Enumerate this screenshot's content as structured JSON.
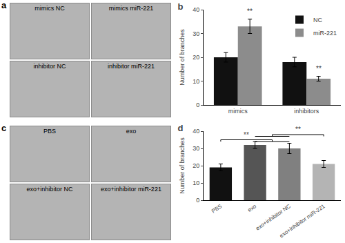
{
  "panels": [
    {
      "title": "a",
      "labels": [
        "mimics NC",
        "mimics miR-221",
        "inhibitor NC",
        "inhibitor miR-221"
      ]
    },
    {
      "title": "c",
      "labels": [
        "PBS",
        "exo",
        "exo+inhibitor NC",
        "exo+inhibitor miR-221"
      ]
    }
  ],
  "chart_data": [
    {
      "type": "bar",
      "title": "b",
      "y_label": "Number of branches",
      "categories": [
        "mimics",
        "inhibitors"
      ],
      "series": [
        {
          "name": "NC",
          "color": "#111111",
          "values": [
            20,
            18
          ],
          "errors": [
            2,
            2
          ]
        },
        {
          "name": "miR-221",
          "color": "#8c8c8c",
          "values": [
            33,
            11
          ],
          "errors": [
            3,
            1
          ]
        }
      ],
      "ylim": [
        0,
        40
      ],
      "yticks": [
        0,
        10,
        20,
        30,
        40
      ],
      "grid": false,
      "legend": "upper right",
      "annotations": [
        {
          "text": "**",
          "series": "miR-221",
          "category": "mimics",
          "y": 37
        },
        {
          "text": "**",
          "series": "miR-221",
          "category": "inhibitors",
          "y": 13
        }
      ]
    },
    {
      "type": "bar",
      "title": "d",
      "y_label": "Number of branches",
      "categories": [
        "PBS",
        "exo",
        "exo+inhibitor NC",
        "exo+inhibitor miR-221"
      ],
      "values": [
        19,
        32,
        30,
        21
      ],
      "errors": [
        2,
        2,
        3,
        2
      ],
      "colors": [
        "#111111",
        "#555555",
        "#808080",
        "#b4b4b4"
      ],
      "ylim": [
        0,
        40
      ],
      "yticks": [
        0,
        10,
        20,
        30,
        40
      ],
      "grid": false,
      "annotations": [
        {
          "text": "**",
          "between": [
            [
              "PBS"
            ],
            [
              "exo",
              "exo+inhibitor NC"
            ]
          ],
          "y": 35
        },
        {
          "text": "**",
          "between": [
            [
              "exo",
              "exo+inhibitor NC"
            ],
            [
              "exo+inhibitor miR-221"
            ]
          ],
          "y": 38
        }
      ]
    }
  ]
}
